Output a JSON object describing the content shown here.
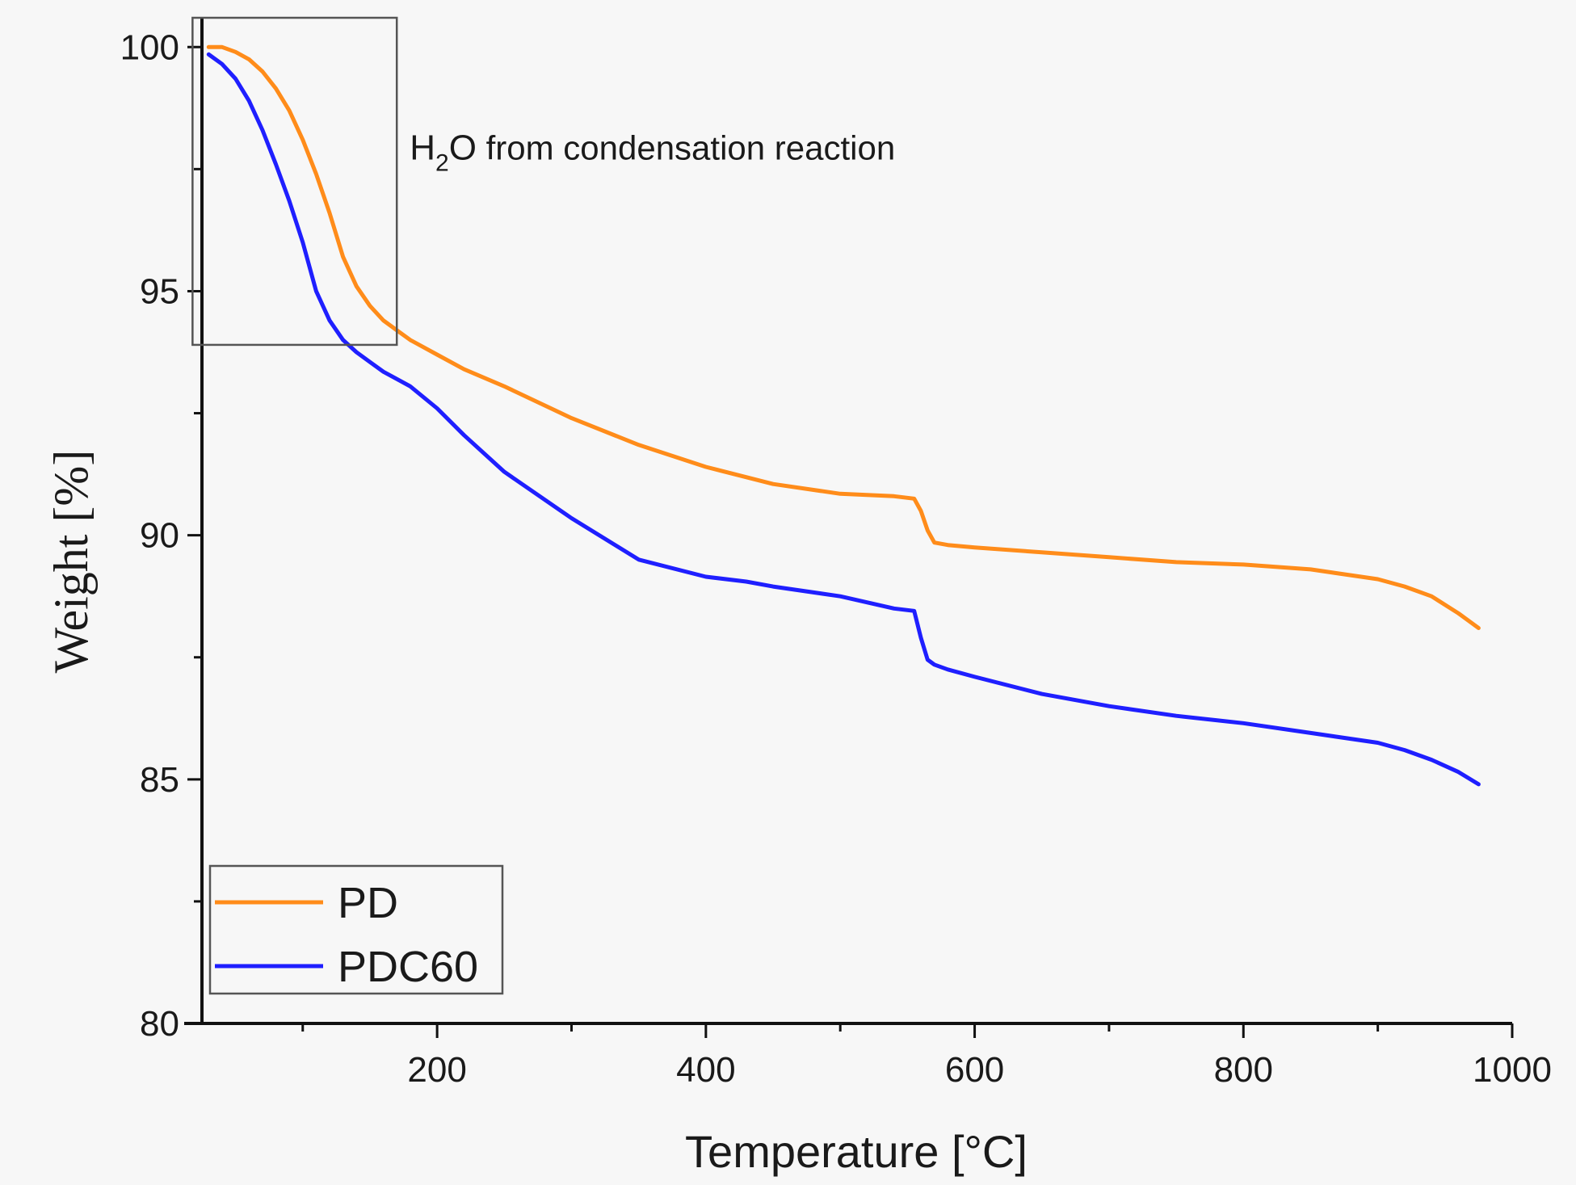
{
  "chart_data": {
    "type": "line",
    "xlabel": "Temperature [°C]",
    "ylabel": "Weight [%]",
    "xlim": [
      25,
      1000
    ],
    "ylim": [
      80,
      100.6
    ],
    "xticks": [
      200,
      400,
      600,
      800,
      1000
    ],
    "yticks": [
      80,
      85,
      90,
      95,
      100
    ],
    "x_minor_step": 100,
    "y_minor_step": 2.5,
    "annotation": {
      "main": "H",
      "subscript": "2",
      "rest": "O",
      "suffix": " from condensation reaction",
      "box": {
        "x0": 18,
        "x1": 170,
        "y0": 93.9,
        "y1": 100.6
      }
    },
    "legend": {
      "position": "bottom-left"
    },
    "series": [
      {
        "name": "PD",
        "color": "#ff8c1a",
        "x": [
          30,
          40,
          50,
          60,
          70,
          80,
          90,
          100,
          110,
          120,
          130,
          140,
          150,
          160,
          170,
          180,
          200,
          220,
          250,
          300,
          350,
          400,
          450,
          500,
          540,
          555,
          560,
          565,
          570,
          580,
          600,
          650,
          700,
          750,
          800,
          850,
          900,
          920,
          940,
          960,
          975
        ],
        "y": [
          100.0,
          100.0,
          99.9,
          99.75,
          99.5,
          99.15,
          98.7,
          98.1,
          97.4,
          96.6,
          95.7,
          95.1,
          94.7,
          94.4,
          94.2,
          94.0,
          93.7,
          93.4,
          93.05,
          92.4,
          91.85,
          91.4,
          91.05,
          90.85,
          90.8,
          90.75,
          90.5,
          90.1,
          89.85,
          89.8,
          89.75,
          89.65,
          89.55,
          89.45,
          89.4,
          89.3,
          89.1,
          88.95,
          88.75,
          88.4,
          88.1
        ]
      },
      {
        "name": "PDC60",
        "color": "#1f1fff",
        "x": [
          30,
          40,
          50,
          60,
          70,
          80,
          90,
          100,
          110,
          120,
          130,
          140,
          150,
          160,
          170,
          180,
          200,
          220,
          250,
          300,
          350,
          400,
          430,
          450,
          500,
          540,
          555,
          560,
          565,
          570,
          580,
          600,
          650,
          700,
          750,
          800,
          850,
          900,
          920,
          940,
          960,
          975
        ],
        "y": [
          99.85,
          99.65,
          99.35,
          98.9,
          98.3,
          97.6,
          96.85,
          96.0,
          95.0,
          94.4,
          94.0,
          93.75,
          93.55,
          93.35,
          93.2,
          93.05,
          92.6,
          92.05,
          91.3,
          90.35,
          89.5,
          89.15,
          89.05,
          88.95,
          88.75,
          88.5,
          88.45,
          87.9,
          87.45,
          87.35,
          87.25,
          87.1,
          86.75,
          86.5,
          86.3,
          86.15,
          85.95,
          85.75,
          85.6,
          85.4,
          85.15,
          84.9
        ]
      }
    ]
  }
}
